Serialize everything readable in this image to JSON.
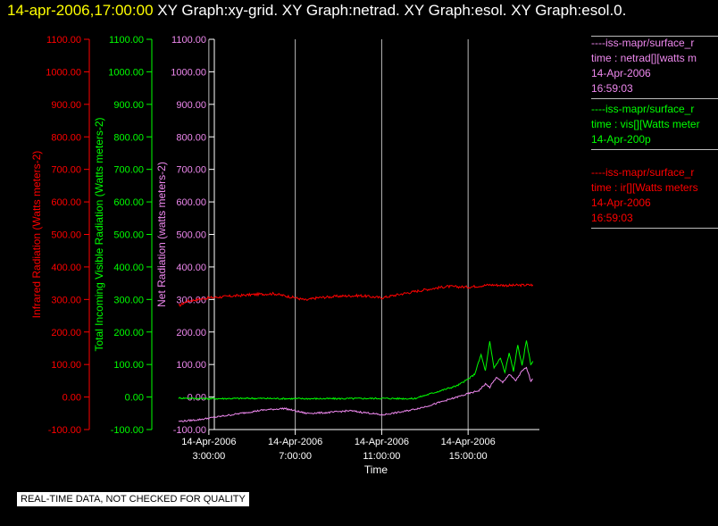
{
  "title": {
    "date": "14-apr-2006,17:00:00",
    "graphs": "XY Graph:xy-grid.  XY Graph:netrad.  XY Graph:esol.  XY Graph:esol.0."
  },
  "disclaimer": "REAL-TIME DATA, NOT CHECKED FOR QUALITY",
  "legend": [
    {
      "lines": [
        "----iss-mapr/surface_r",
        "time : netrad[][watts m",
        "14-Apr-2006",
        "16:59:03"
      ],
      "color": "#ee88ee"
    },
    {
      "lines": [
        "----iss-mapr/surface_r",
        "time : vis[][Watts meter",
        "14-Apr-200p"
      ],
      "color": "#00ff00"
    },
    {
      "lines": [
        "----iss-mapr/surface_r",
        "time : ir[][Watts meters",
        "14-Apr-2006",
        "16:59:03"
      ],
      "color": "#ff0000"
    }
  ],
  "chart_data": {
    "type": "line",
    "xlabel": "Time",
    "x_ticks": [
      {
        "date": "14-Apr-2006",
        "time": "3:00:00"
      },
      {
        "date": "14-Apr-2006",
        "time": "7:00:00"
      },
      {
        "date": "14-Apr-2006",
        "time": "11:00:00"
      },
      {
        "date": "14-Apr-2006",
        "time": "15:00:00"
      }
    ],
    "xlim": [
      1.6,
      18.3
    ],
    "ylim": [
      -100,
      1100
    ],
    "y_ticks": [
      "-100.00",
      "0.00",
      "100.00",
      "200.00",
      "300.00",
      "400.00",
      "500.00",
      "600.00",
      "700.00",
      "800.00",
      "900.00",
      "1000.00",
      "1100.00"
    ],
    "y_tick_values": [
      -100,
      0,
      100,
      200,
      300,
      400,
      500,
      600,
      700,
      800,
      900,
      1000,
      1100
    ],
    "axes": [
      {
        "label": "Infrared Radiation (Watts meters-2)",
        "color": "#ff0000"
      },
      {
        "label": "Total Incoming Visible Radiation (Watts meters-2)",
        "color": "#00ff00"
      },
      {
        "label": "Net Radiation (watts meters-2)",
        "color": "#ee88ee"
      }
    ],
    "grid": "vertical",
    "series": [
      {
        "color": "#ff0000",
        "x": [
          1.6,
          2.0,
          3.0,
          4.0,
          5.0,
          6.0,
          7.0,
          7.5,
          8.0,
          9.0,
          10.0,
          11.0,
          12.0,
          13.0,
          14.0,
          15.0,
          16.0,
          17.0,
          18.0
        ],
        "y": [
          280,
          295,
          305,
          310,
          315,
          318,
          305,
          298,
          305,
          310,
          312,
          305,
          318,
          330,
          340,
          338,
          345,
          343,
          345
        ]
      },
      {
        "color": "#00ff00",
        "x": [
          1.6,
          3.0,
          5.0,
          7.0,
          9.0,
          11.0,
          12.5,
          13.0,
          13.5,
          14.0,
          14.5,
          15.0,
          15.3,
          15.6,
          15.8,
          16.0,
          16.2,
          16.5,
          16.7,
          16.9,
          17.1,
          17.3,
          17.5,
          17.7,
          17.9,
          18.0
        ],
        "y": [
          -3,
          -5,
          -4,
          -5,
          -5,
          -4,
          -5,
          5,
          15,
          25,
          35,
          55,
          70,
          130,
          80,
          170,
          90,
          120,
          75,
          135,
          80,
          160,
          95,
          175,
          100,
          110
        ]
      },
      {
        "color": "#ee88ee",
        "x": [
          1.6,
          2.5,
          3.5,
          4.5,
          5.5,
          6.5,
          7.5,
          8.5,
          9.5,
          10.5,
          11.0,
          12.0,
          13.0,
          14.0,
          14.5,
          15.0,
          15.5,
          15.8,
          16.0,
          16.3,
          16.6,
          16.9,
          17.2,
          17.5,
          17.7,
          17.9,
          18.0
        ],
        "y": [
          -75,
          -70,
          -60,
          -50,
          -40,
          -35,
          -50,
          -48,
          -42,
          -50,
          -55,
          -45,
          -30,
          -10,
          0,
          10,
          20,
          40,
          30,
          60,
          45,
          70,
          50,
          80,
          90,
          50,
          55
        ]
      }
    ]
  }
}
